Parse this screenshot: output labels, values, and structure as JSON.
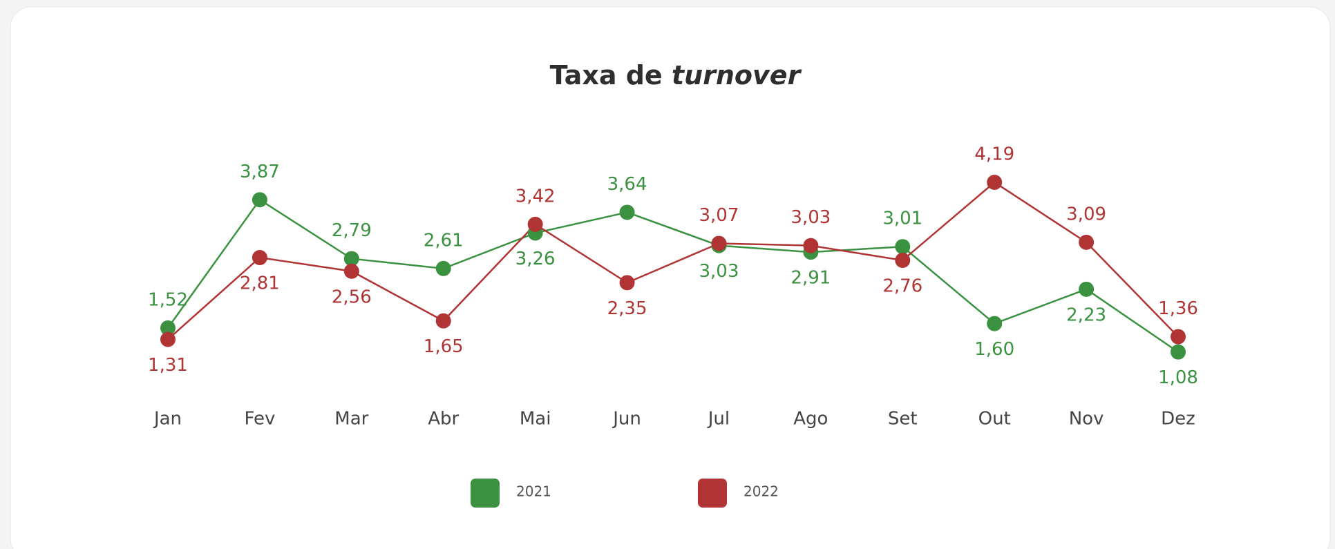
{
  "chart_data": {
    "type": "line",
    "title": "Taxa de turnover",
    "title_emphasis": "turnover",
    "categories": [
      "Jan",
      "Fev",
      "Mar",
      "Abr",
      "Mai",
      "Jun",
      "Jul",
      "Ago",
      "Set",
      "Out",
      "Nov",
      "Dez"
    ],
    "series": [
      {
        "name": "2021",
        "color": "#3a9140",
        "values": [
          1.52,
          3.87,
          2.79,
          2.61,
          3.26,
          3.64,
          3.03,
          2.91,
          3.01,
          1.6,
          2.23,
          1.08
        ],
        "value_labels": [
          "1,52",
          "3,87",
          "2,79",
          "2,61",
          "3,26",
          "3,64",
          "3,03",
          "2,91",
          "3,01",
          "1,60",
          "2,23",
          "1,08"
        ]
      },
      {
        "name": "2022",
        "color": "#b03434",
        "values": [
          1.31,
          2.81,
          2.56,
          1.65,
          3.42,
          2.35,
          3.07,
          3.03,
          2.76,
          4.19,
          3.09,
          1.36
        ],
        "value_labels": [
          "1,31",
          "2,81",
          "2,56",
          "1,65",
          "3,42",
          "2,35",
          "3,07",
          "3,03",
          "2,76",
          "4,19",
          "3,09",
          "1,36"
        ]
      }
    ],
    "ylim": [
      0,
      5
    ]
  }
}
